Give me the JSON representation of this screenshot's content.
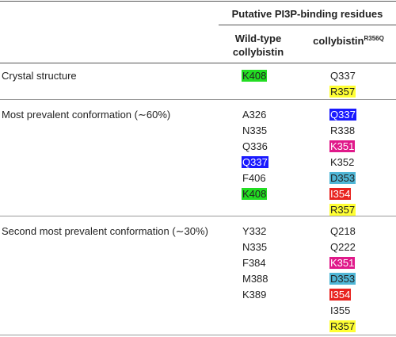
{
  "table": {
    "spanning_header": "Putative PI3P-binding residues",
    "col1_header_line1": "Wild-type",
    "col1_header_line2": "collybistin",
    "col2_header_main": "collybistin",
    "col2_header_sup": "R356Q",
    "rows": [
      {
        "label": "Crystal structure",
        "wildtype": [
          {
            "text": "K408",
            "highlight": "#22dd22"
          }
        ],
        "mutant": [
          {
            "text": "Q337",
            "highlight": null
          },
          {
            "text": "R357",
            "highlight": "#ffff33"
          }
        ]
      },
      {
        "label": "Most prevalent conformation (∼60%)",
        "wildtype": [
          {
            "text": "A326",
            "highlight": null
          },
          {
            "text": "N335",
            "highlight": null
          },
          {
            "text": "Q336",
            "highlight": null
          },
          {
            "text": "Q337",
            "highlight": "#1a1aff"
          },
          {
            "text": "F406",
            "highlight": null
          },
          {
            "text": "K408",
            "highlight": "#22dd22"
          }
        ],
        "mutant": [
          {
            "text": "Q337",
            "highlight": "#1a1aff"
          },
          {
            "text": "R338",
            "highlight": null
          },
          {
            "text": "K351",
            "highlight": "#e0198a"
          },
          {
            "text": "K352",
            "highlight": null
          },
          {
            "text": "D353",
            "highlight": "#4fb6d6"
          },
          {
            "text": "I354",
            "highlight": "#e8231f"
          },
          {
            "text": "R357",
            "highlight": "#ffff33"
          }
        ]
      },
      {
        "label": "Second most prevalent conformation (∼30%)",
        "wildtype": [
          {
            "text": "Y332",
            "highlight": null
          },
          {
            "text": "N335",
            "highlight": null
          },
          {
            "text": "F384",
            "highlight": null
          },
          {
            "text": "M388",
            "highlight": null
          },
          {
            "text": "K389",
            "highlight": null
          }
        ],
        "mutant": [
          {
            "text": "Q218",
            "highlight": null
          },
          {
            "text": "Q222",
            "highlight": null
          },
          {
            "text": "K351",
            "highlight": "#e0198a"
          },
          {
            "text": "D353",
            "highlight": "#4fb6d6"
          },
          {
            "text": "I354",
            "highlight": "#e8231f"
          },
          {
            "text": "I355",
            "highlight": null
          },
          {
            "text": "R357",
            "highlight": "#ffff33"
          }
        ]
      }
    ]
  }
}
